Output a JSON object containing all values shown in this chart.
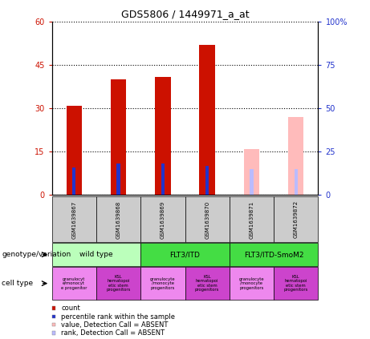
{
  "title": "GDS5806 / 1449971_a_at",
  "samples": [
    "GSM1639867",
    "GSM1639868",
    "GSM1639869",
    "GSM1639870",
    "GSM1639871",
    "GSM1639872"
  ],
  "count_values": [
    31,
    40,
    41,
    52,
    null,
    null
  ],
  "rank_values": [
    16,
    18,
    18,
    17,
    null,
    null
  ],
  "absent_value_values": [
    null,
    null,
    null,
    null,
    16,
    27
  ],
  "absent_rank_values": [
    null,
    null,
    null,
    null,
    15,
    15
  ],
  "ylim_left": [
    0,
    60
  ],
  "ylim_right": [
    0,
    100
  ],
  "yticks_left": [
    0,
    15,
    30,
    45,
    60
  ],
  "ytick_labels_left": [
    "0",
    "15",
    "30",
    "45",
    "60"
  ],
  "ytick_labels_right": [
    "0",
    "25",
    "50",
    "75",
    "100%"
  ],
  "count_color": "#cc1100",
  "rank_color": "#2233cc",
  "absent_value_color": "#ffbbbb",
  "absent_rank_color": "#bbbbff",
  "genotype_groups": [
    {
      "label": "wild type",
      "cols": [
        0,
        1
      ],
      "color": "#bbffbb"
    },
    {
      "label": "FLT3/ITD",
      "cols": [
        2,
        3
      ],
      "color": "#44dd44"
    },
    {
      "label": "FLT3/ITD-SmoM2",
      "cols": [
        4,
        5
      ],
      "color": "#44dd44"
    }
  ],
  "cell_type_colors": [
    "#ee88ee",
    "#cc44cc",
    "#ee88ee",
    "#cc44cc",
    "#ee88ee",
    "#cc44cc"
  ],
  "cell_type_labels": [
    "granulocyt\ne/monocyt\ne progenitor",
    "KSL\nhematopoi\netic stem\nprogenitors",
    "granulocyte\n/monocyte\nprogenitors",
    "KSL\nhematopoi\netic stem\nprogenitors",
    "granulocyte\n/monocyte\nprogenitors",
    "KSL\nhematopoi\netic stem\nprogenitors"
  ],
  "legend_items": [
    {
      "label": "count",
      "color": "#cc1100"
    },
    {
      "label": "percentile rank within the sample",
      "color": "#2233cc"
    },
    {
      "label": "value, Detection Call = ABSENT",
      "color": "#ffbbbb"
    },
    {
      "label": "rank, Detection Call = ABSENT",
      "color": "#bbbbff"
    }
  ],
  "sample_box_color": "#cccccc"
}
